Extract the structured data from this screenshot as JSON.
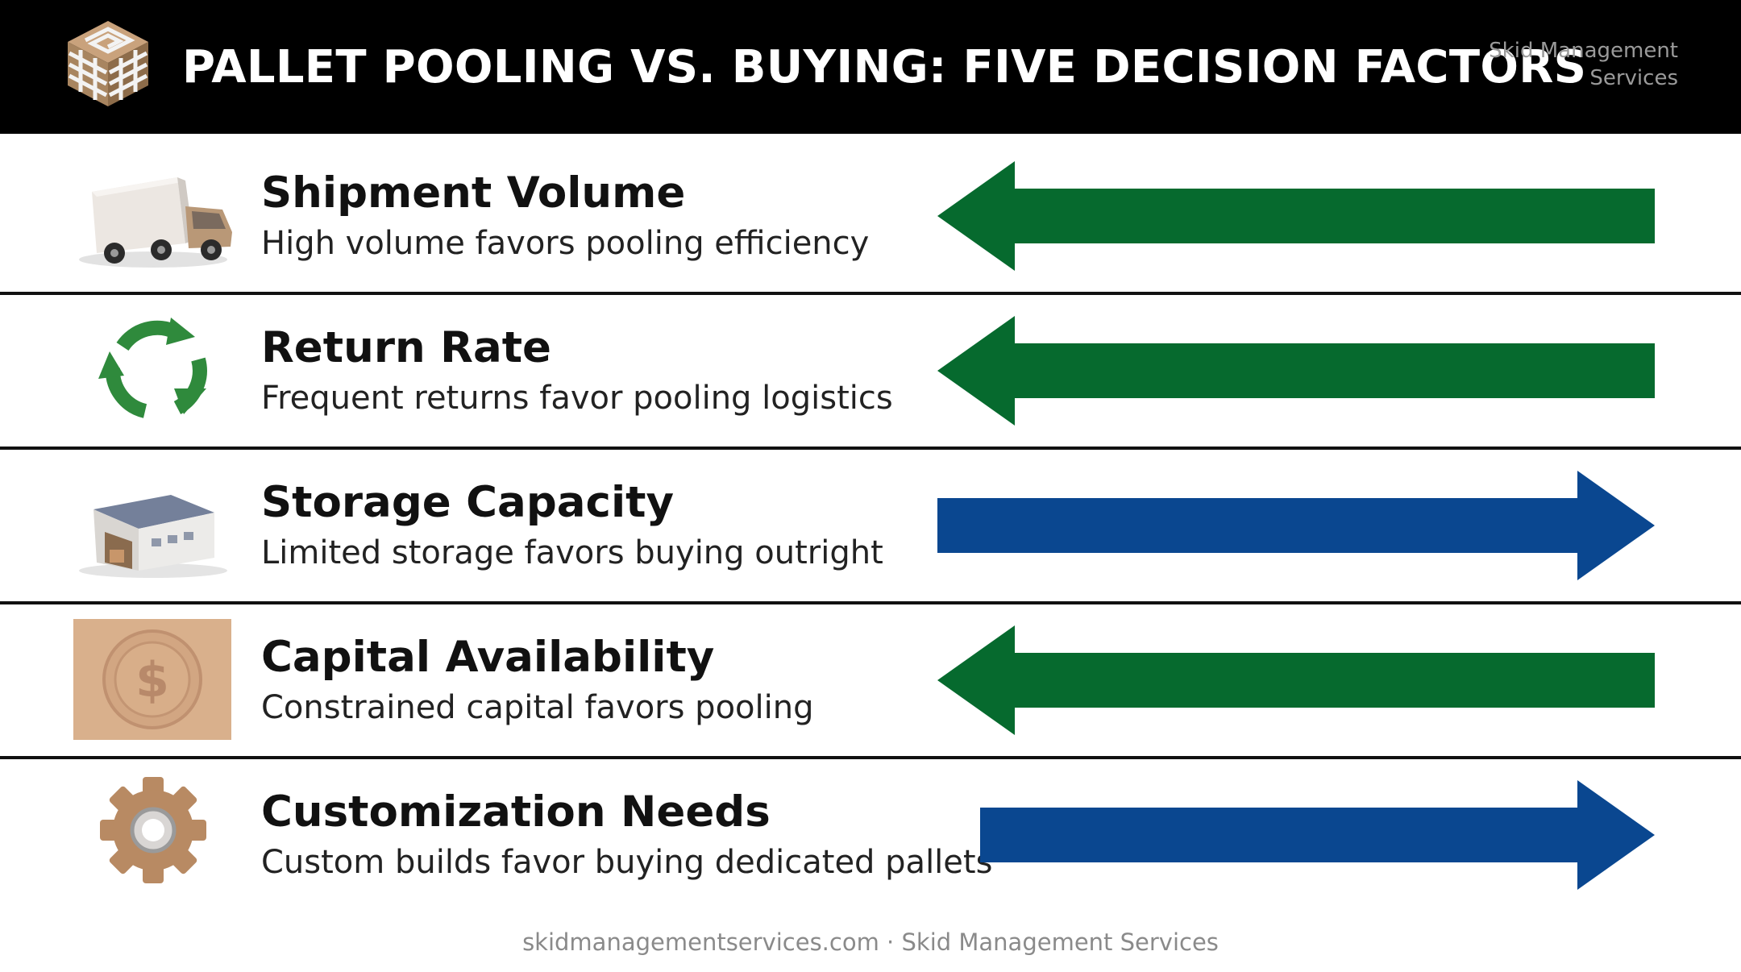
{
  "header": {
    "title": "PALLET POOLING VS. BUYING: FIVE DECISION FACTORS",
    "brand_line1": "Skid Management",
    "brand_line2": "Services",
    "logo_icon": "pallet-stack-logo-icon"
  },
  "colors": {
    "header_bg": "#000000",
    "pooling_arrow": "#066a2e",
    "buying_arrow": "#0a4790",
    "divider": "#111111"
  },
  "factors": [
    {
      "title": "Shipment Volume",
      "description": "High volume favors pooling efficiency",
      "icon": "delivery-truck-icon",
      "direction": "left"
    },
    {
      "title": "Return Rate",
      "description": "Frequent returns favor pooling logistics",
      "icon": "recycle-arrows-icon",
      "direction": "left"
    },
    {
      "title": "Storage Capacity",
      "description": "Limited storage favors buying outright",
      "icon": "warehouse-icon",
      "direction": "right"
    },
    {
      "title": "Capital Availability",
      "description": "Constrained capital favors pooling",
      "icon": "dollar-coin-icon",
      "direction": "left"
    },
    {
      "title": "Customization Needs",
      "description": "Custom builds favor buying dedicated pallets",
      "icon": "gear-icon",
      "direction": "right"
    }
  ],
  "footer": {
    "text": "skidmanagementservices.com · Skid Management Services"
  }
}
